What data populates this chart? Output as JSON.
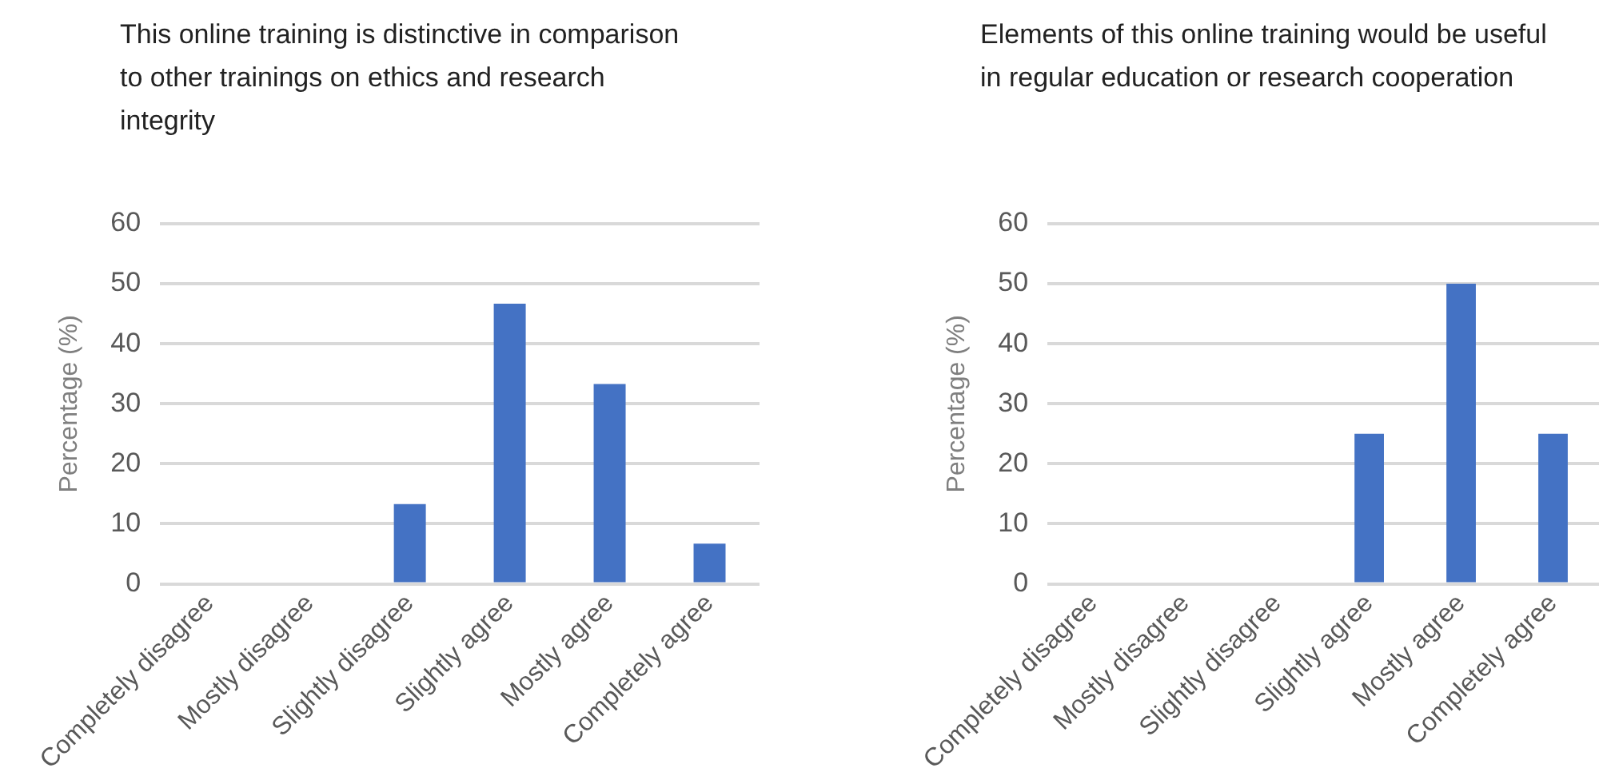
{
  "chart_data": [
    {
      "type": "bar",
      "title": "This online training is distinctive in comparison to other trainings on ethics and research integrity",
      "ylabel": "Percentage (%)",
      "categories": [
        "Completely disagree",
        "Mostly disagree",
        "Slightly disagree",
        "Slightly agree",
        "Mostly agree",
        "Completely agree"
      ],
      "values": [
        0,
        0,
        13.3,
        46.7,
        33.3,
        6.7
      ],
      "color": "#4472c4",
      "ylim": [
        0,
        60
      ],
      "yticks": [
        0,
        10,
        20,
        30,
        40,
        50,
        60
      ],
      "grid": "y",
      "legend": false
    },
    {
      "type": "bar",
      "title": "Elements of this online training would be useful in regular education or research cooperation",
      "ylabel": "Percentage (%)",
      "categories": [
        "Completely disagree",
        "Mostly disagree",
        "Slightly disagree",
        "Slightly agree",
        "Mostly agree",
        "Completely agree"
      ],
      "values": [
        0,
        0,
        0,
        25,
        50,
        25
      ],
      "color": "#4472c4",
      "ylim": [
        0,
        60
      ],
      "yticks": [
        0,
        10,
        20,
        30,
        40,
        50,
        60
      ],
      "grid": "y",
      "legend": false
    }
  ]
}
